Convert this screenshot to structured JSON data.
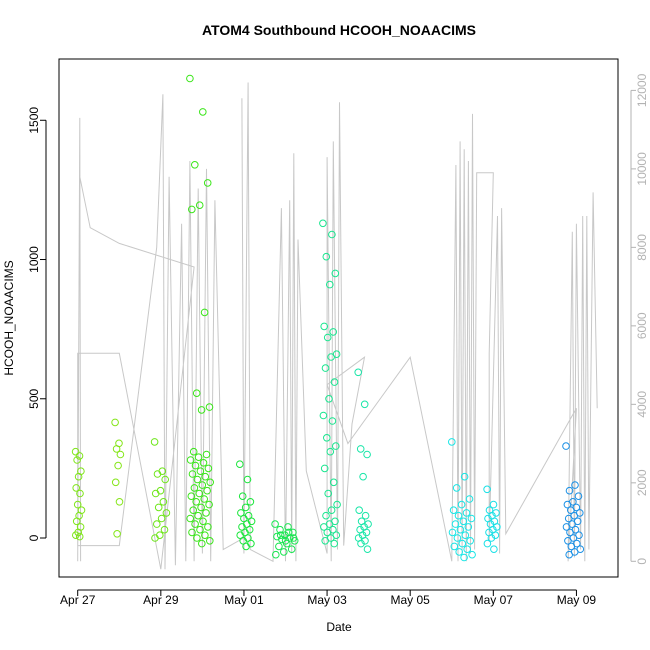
{
  "chart_data": {
    "type": "scatter",
    "title": "ATOM4 Southbound HCOOH_NOAACIMS",
    "xlabel": "Date",
    "ylabel": "HCOOH_NOAACIMS",
    "x_tick_labels": [
      "Apr 27",
      "Apr 29",
      "May 01",
      "May 03",
      "May 05",
      "May 07",
      "May 09"
    ],
    "x_tick_days": [
      0,
      2,
      4,
      6,
      8,
      10,
      12
    ],
    "xlim_days": [
      -0.45,
      13.0
    ],
    "y_ticks": [
      0,
      500,
      1000,
      1500
    ],
    "ylim": [
      -140,
      1720
    ],
    "y2_ticks": [
      0,
      2000,
      4000,
      6000,
      8000,
      10000,
      12000
    ],
    "y2lim": [
      -400,
      12800
    ],
    "grid": false,
    "legend": "none",
    "colors": {
      "altitude_line": "#c8c8c8",
      "axis": "#000000",
      "right_axis": "#b3b3b3"
    },
    "altitude_series": [
      [
        0.0,
        0
      ],
      [
        0.05,
        11300
      ],
      [
        0.07,
        0
      ],
      [
        0.05,
        9800
      ],
      [
        0.3,
        8500
      ],
      [
        1.0,
        8100
      ],
      [
        2.8,
        7500
      ],
      [
        2.0,
        -200
      ],
      [
        1.0,
        5300
      ],
      [
        0.0,
        5300
      ],
      [
        0.0,
        400
      ],
      [
        1.0,
        400
      ],
      [
        1.9,
        8000
      ],
      [
        2.05,
        11900
      ],
      [
        2.1,
        -200
      ],
      [
        2.2,
        9800
      ],
      [
        2.35,
        -100
      ],
      [
        2.5,
        8600
      ],
      [
        2.6,
        0
      ],
      [
        2.7,
        10200
      ],
      [
        2.8,
        0
      ],
      [
        2.9,
        9500
      ],
      [
        3.0,
        200
      ],
      [
        3.1,
        10000
      ],
      [
        3.2,
        0
      ],
      [
        3.3,
        9200
      ],
      [
        3.5,
        300
      ],
      [
        4.0,
        600
      ],
      [
        3.95,
        11800
      ],
      [
        4.0,
        200
      ],
      [
        4.1,
        12200
      ],
      [
        4.15,
        300
      ],
      [
        4.7,
        0
      ],
      [
        4.9,
        9000
      ],
      [
        5.0,
        0
      ],
      [
        5.1,
        9200
      ],
      [
        5.15,
        200
      ],
      [
        5.2,
        10400
      ],
      [
        5.25,
        0
      ],
      [
        5.3,
        8200
      ],
      [
        5.5,
        2300
      ],
      [
        6.0,
        200
      ],
      [
        6.0,
        10300
      ],
      [
        6.1,
        0
      ],
      [
        6.15,
        10700
      ],
      [
        6.25,
        300
      ],
      [
        6.3,
        11700
      ],
      [
        6.4,
        400
      ],
      [
        6.6,
        3500
      ],
      [
        6.9,
        5200
      ],
      [
        6.0,
        4500
      ],
      [
        6.5,
        3000
      ],
      [
        8.0,
        5200
      ],
      [
        9.0,
        0
      ],
      [
        9.1,
        10100
      ],
      [
        9.15,
        0
      ],
      [
        9.2,
        10700
      ],
      [
        9.25,
        200
      ],
      [
        9.3,
        10500
      ],
      [
        9.35,
        0
      ],
      [
        9.4,
        10200
      ],
      [
        9.45,
        200
      ],
      [
        9.5,
        11400
      ],
      [
        9.55,
        300
      ],
      [
        9.6,
        9900
      ],
      [
        10.0,
        9900
      ],
      [
        9.9,
        5300
      ],
      [
        9.9,
        500
      ],
      [
        10.1,
        8800
      ],
      [
        10.15,
        200
      ],
      [
        10.2,
        9000
      ],
      [
        10.3,
        700
      ],
      [
        12.0,
        3900
      ],
      [
        11.8,
        0
      ],
      [
        11.9,
        8400
      ],
      [
        11.95,
        100
      ],
      [
        12.0,
        8600
      ],
      [
        12.1,
        300
      ],
      [
        12.15,
        8800
      ],
      [
        12.2,
        0
      ],
      [
        12.25,
        8800
      ],
      [
        12.3,
        300
      ],
      [
        12.4,
        9400
      ],
      [
        12.5,
        3900
      ]
    ],
    "point_clusters": [
      {
        "day_start": -0.05,
        "day_end": 0.1,
        "y_values": [
          310,
          295,
          280,
          240,
          220,
          180,
          160,
          120,
          100,
          80,
          60,
          40,
          20,
          10,
          5
        ],
        "color": "#7fe619"
      },
      {
        "day_start": 0.9,
        "day_end": 1.05,
        "y_values": [
          415,
          340,
          320,
          300,
          260,
          200,
          130,
          15
        ],
        "color": "#85e619"
      },
      {
        "day_start": 1.85,
        "day_end": 2.15,
        "y_values": [
          345,
          240,
          230,
          210,
          170,
          160,
          130,
          110,
          90,
          70,
          50,
          30,
          10,
          0
        ],
        "color": "#6ee619"
      },
      {
        "day_start": 2.7,
        "day_end": 3.2,
        "y_values": [
          1650,
          1530,
          1340,
          1275,
          1195,
          1180,
          810,
          520,
          470,
          460,
          310,
          300,
          290,
          280,
          270,
          260,
          250,
          240,
          230,
          220,
          210,
          200,
          190,
          180,
          170,
          160,
          150,
          140,
          130,
          120,
          110,
          100,
          90,
          80,
          70,
          60,
          50,
          40,
          30,
          20,
          10,
          0,
          -10,
          -20
        ],
        "color": "#3ae619"
      },
      {
        "day_start": 3.9,
        "day_end": 4.2,
        "y_values": [
          265,
          210,
          150,
          130,
          110,
          90,
          80,
          70,
          60,
          50,
          40,
          30,
          20,
          10,
          0,
          -10,
          -20,
          -30
        ],
        "color": "#19e63a"
      },
      {
        "day_start": 4.75,
        "day_end": 5.25,
        "y_values": [
          50,
          40,
          30,
          20,
          10,
          5,
          0,
          -5,
          -10,
          -20,
          -30,
          -40,
          -50,
          -60,
          20,
          10,
          0,
          -10
        ],
        "color": "#19e650"
      },
      {
        "day_start": 5.9,
        "day_end": 6.25,
        "y_values": [
          1130,
          1090,
          1010,
          950,
          910,
          760,
          740,
          720,
          660,
          650,
          610,
          560,
          500,
          440,
          420,
          360,
          330,
          310,
          250,
          200,
          160,
          120,
          100,
          80,
          60,
          50,
          40,
          30,
          20,
          10,
          0,
          -10,
          -20
        ],
        "color": "#19e68f"
      },
      {
        "day_start": 6.75,
        "day_end": 7.0,
        "y_values": [
          595,
          480,
          320,
          300,
          220,
          100,
          80,
          60,
          50,
          40,
          30,
          20,
          10,
          0,
          -10,
          -20,
          -40
        ],
        "color": "#19e6a8"
      },
      {
        "day_start": 9.0,
        "day_end": 9.5,
        "y_values": [
          345,
          220,
          180,
          140,
          120,
          100,
          90,
          80,
          70,
          60,
          50,
          40,
          30,
          20,
          10,
          0,
          -10,
          -20,
          -30,
          -40,
          -50,
          -60,
          -70
        ],
        "color": "#19e6e6"
      },
      {
        "day_start": 9.85,
        "day_end": 10.1,
        "y_values": [
          175,
          120,
          100,
          90,
          80,
          70,
          60,
          50,
          40,
          30,
          20,
          10,
          0,
          -20,
          -40
        ],
        "color": "#19e0e6"
      },
      {
        "day_start": 11.75,
        "day_end": 12.1,
        "y_values": [
          330,
          190,
          170,
          150,
          130,
          120,
          110,
          100,
          90,
          80,
          70,
          60,
          50,
          40,
          30,
          20,
          10,
          0,
          -10,
          -20,
          -30,
          -40,
          -50,
          -60
        ],
        "color": "#1990e6"
      }
    ]
  }
}
